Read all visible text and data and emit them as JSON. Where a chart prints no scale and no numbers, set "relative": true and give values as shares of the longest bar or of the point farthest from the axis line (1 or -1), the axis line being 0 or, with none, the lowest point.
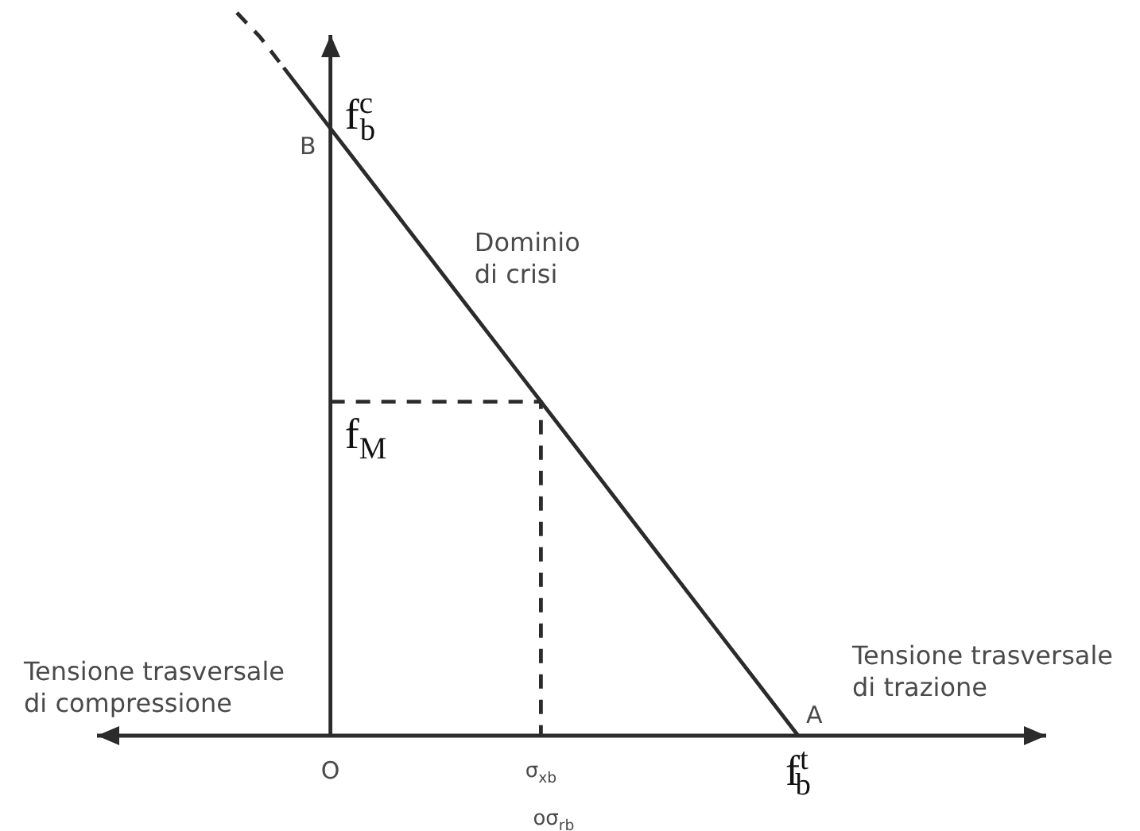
{
  "chart_data": {
    "type": "line",
    "relative": true,
    "categories": [
      null,
      null,
      null,
      null,
      "O",
      null,
      null,
      null,
      null,
      null,
      null,
      null,
      null,
      "σ$_{xb}$",
      null,
      null,
      null,
      null,
      null,
      null,
      null,
      null,
      null,
      null,
      "f$^{t}$$_{b}$"
    ],
    "series": [
      {
        "name": "Dominio di crisi",
        "color": "#2b2b2b",
        "line_style": "solid",
        "values": [
          null,
          null,
          0.924,
          0.882,
          0.84,
          0.798,
          0.756,
          0.714,
          0.672,
          0.63,
          0.588,
          0.546,
          0.504,
          0.462,
          0.42,
          0.378,
          0.336,
          0.294,
          0.252,
          0.21,
          0.168,
          0.126,
          0.084,
          0.042,
          0
        ]
      },
      {
        "color": "#2b2b2b",
        "line_style": "dashed",
        "values": [
          1,
          0.966,
          0.924,
          null,
          null,
          null,
          null,
          null,
          null,
          null,
          null,
          null,
          null,
          null,
          null,
          null,
          null,
          null,
          null,
          null,
          null,
          null,
          null,
          null,
          null
        ]
      },
      {
        "type": "step",
        "color": "#2b2b2b",
        "line_style": "dashed",
        "values": [
          null,
          null,
          null,
          null,
          0.462,
          0.462,
          0.462,
          0.462,
          0.462,
          0.462,
          0.462,
          0.462,
          0.462,
          0,
          null,
          null,
          null,
          null,
          null,
          null,
          null,
          null,
          null,
          null,
          null
        ]
      }
    ],
    "annotations": [
      "Tensione trasversale di compressione",
      "Tensione trasversale di trazione",
      "oσ$_{rb}$",
      {
        "text": "B",
        "x": "O",
        "y": 0.84
      },
      {
        "text": "f$^{c}$$_{b}$",
        "x": "O",
        "y": 0.84
      },
      {
        "text": "f$_{M}$",
        "x": "O",
        "y": 0.462
      },
      {
        "text": "A",
        "x": "f$^{t}$$_{b}$",
        "y": 0
      }
    ]
  }
}
